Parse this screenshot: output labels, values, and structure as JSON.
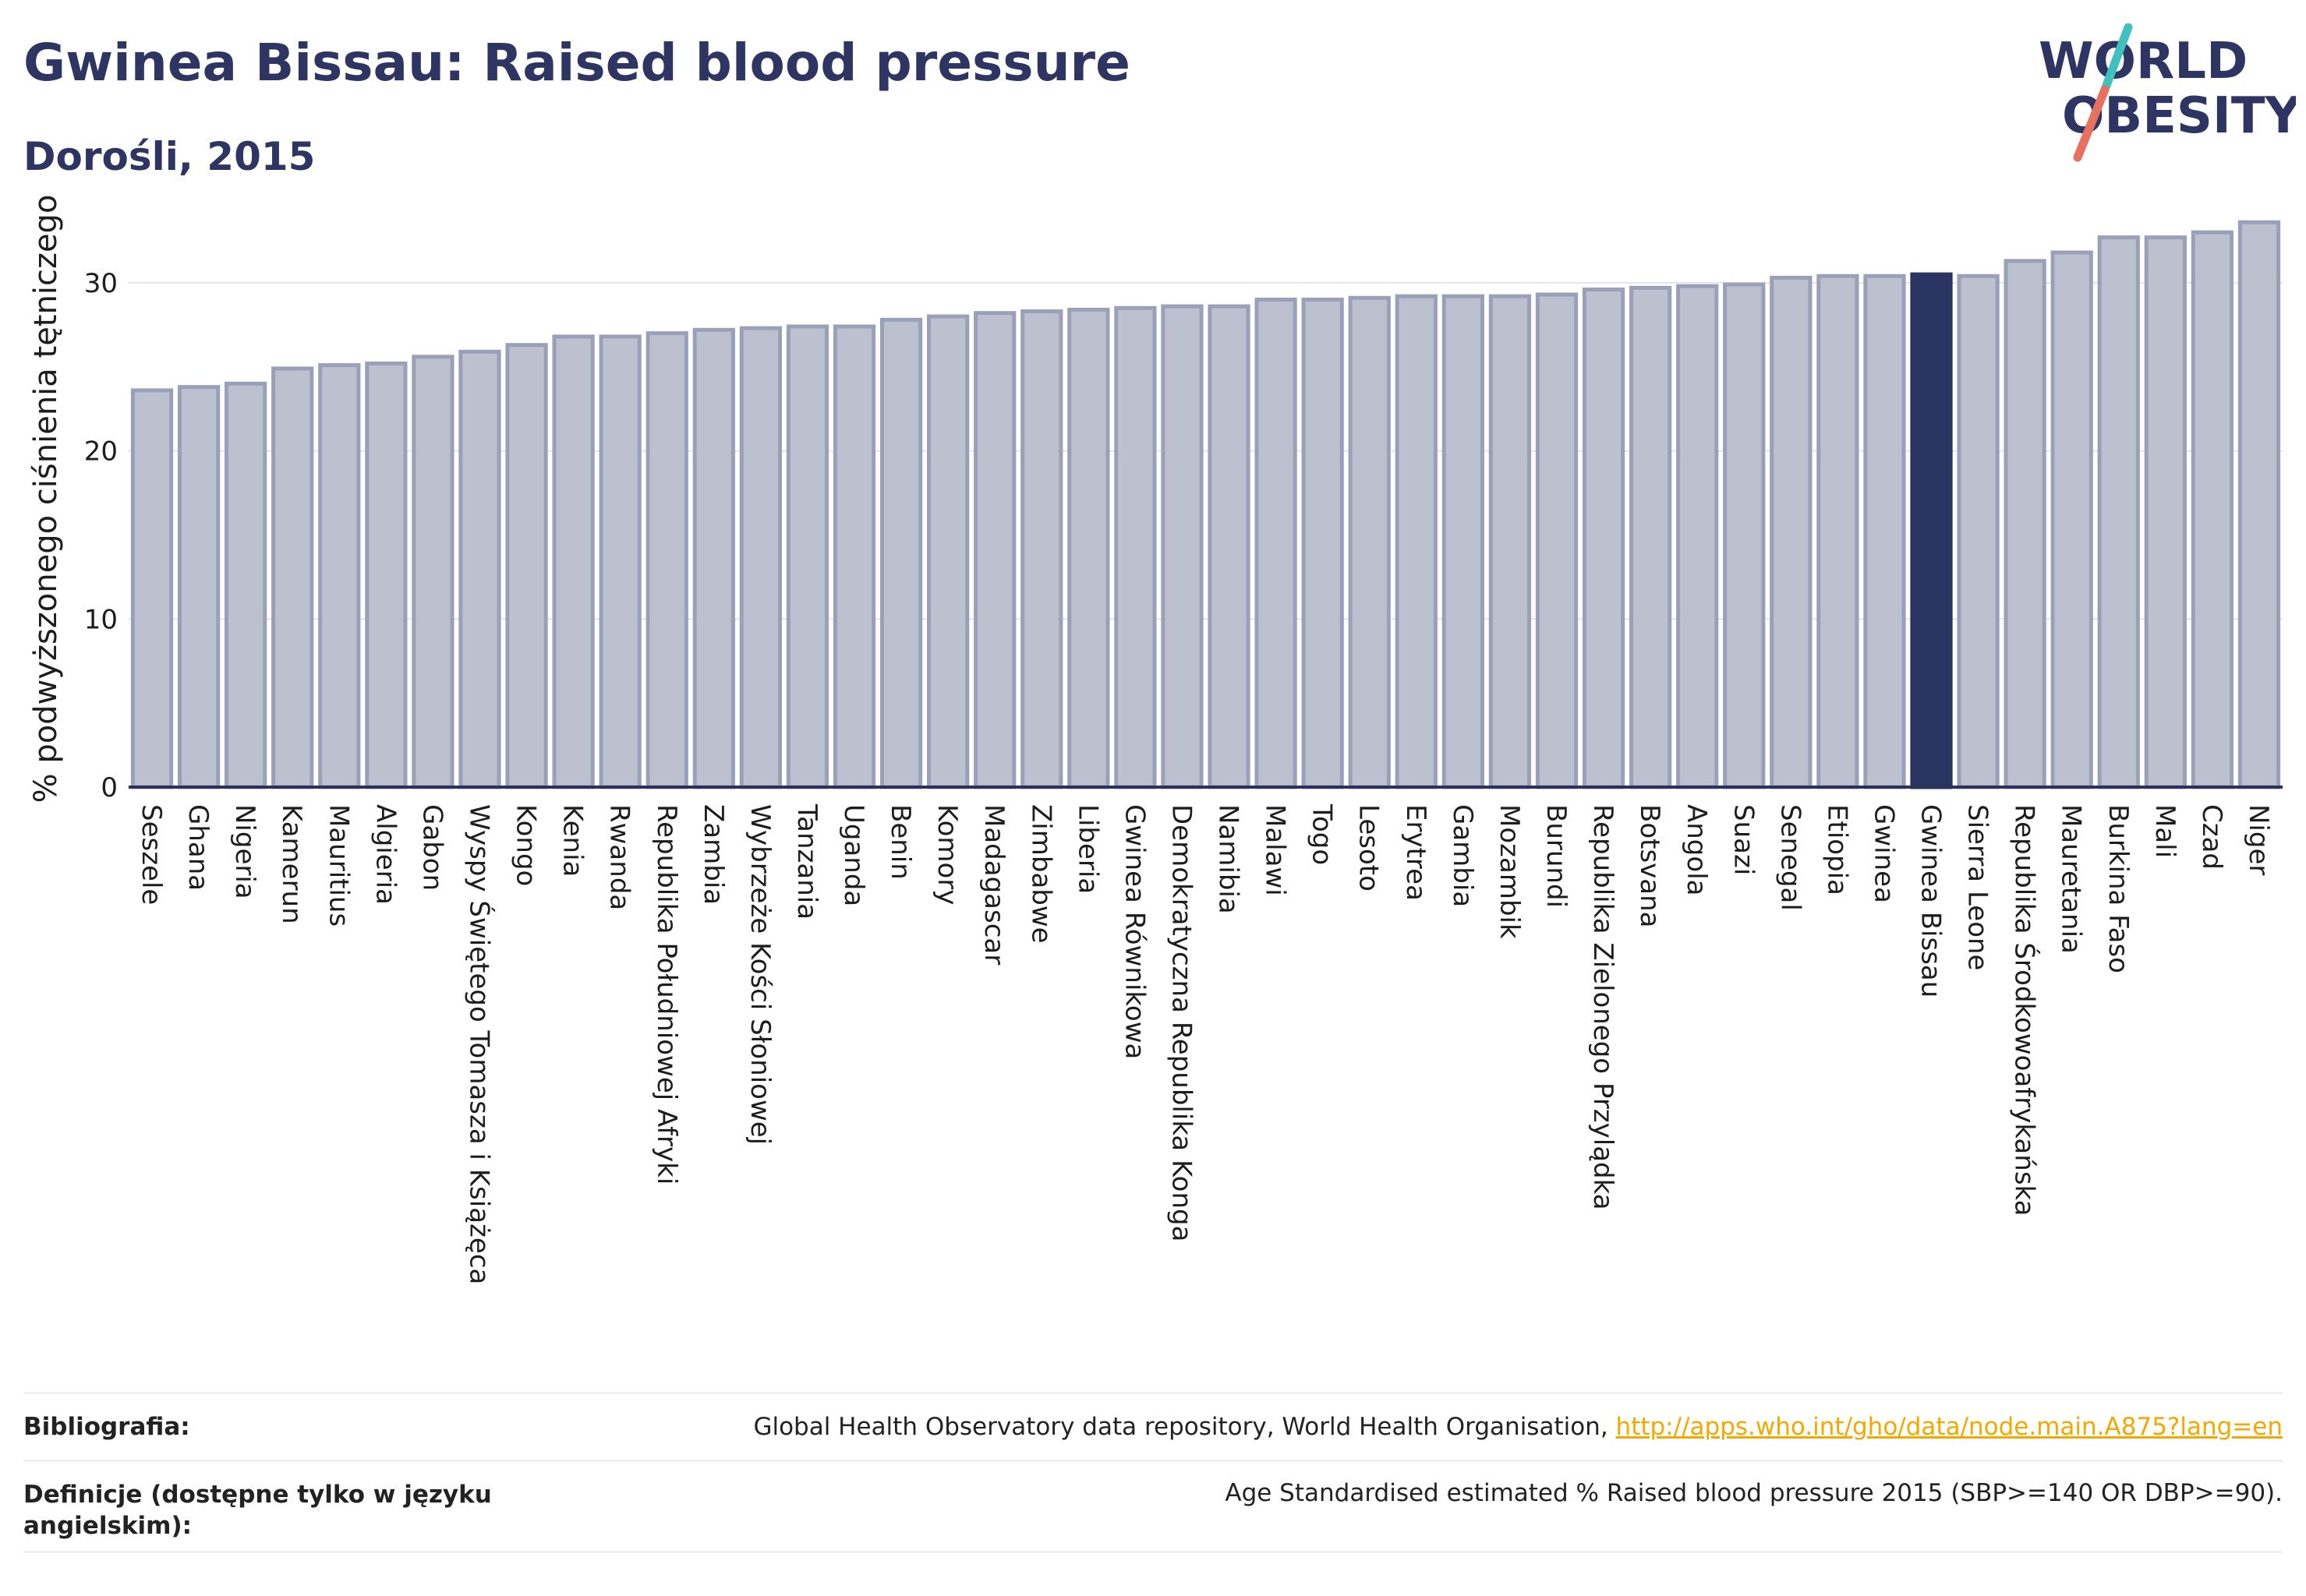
{
  "header": {
    "title": "Gwinea Bissau: Raised blood pressure",
    "subtitle": "Dorośli, 2015"
  },
  "logo": {
    "line1": "WORLD",
    "line2": "OBESITY",
    "colors": {
      "text": "#2e3563",
      "slash_teal": "#3fc1c0",
      "slash_coral": "#e8705f"
    }
  },
  "colors": {
    "bar_fill": "#bcc0cf",
    "bar_stroke": "#9aa0b8",
    "highlight_fill": "#2a3462",
    "grid": "#e3e5ee",
    "axis": "#2b335a"
  },
  "chart_data": {
    "type": "bar",
    "ylabel": "% podwyższonego ciśnienia tętniczego",
    "ylim": [
      0,
      35
    ],
    "yticks": [
      0,
      10,
      20,
      30
    ],
    "grid": true,
    "highlight": "Gwinea Bissau",
    "categories": [
      "Seszele",
      "Ghana",
      "Nigeria",
      "Kamerun",
      "Mauritius",
      "Algieria",
      "Gabon",
      "Wyspy Świętego Tomasza i Książęca",
      "Kongo",
      "Kenia",
      "Rwanda",
      "Republika Południowej Afryki",
      "Zambia",
      "Wybrzeże Kości Słoniowej",
      "Tanzania",
      "Uganda",
      "Benin",
      "Komory",
      "Madagascar",
      "Zimbabwe",
      "Liberia",
      "Gwinea Równikowa",
      "Demokratyczna Republika Konga",
      "Namibia",
      "Malawi",
      "Togo",
      "Lesoto",
      "Erytrea",
      "Gambia",
      "Mozambik",
      "Burundi",
      "Republika Zielonego Przylądka",
      "Botsvana",
      "Angola",
      "Suazi",
      "Senegal",
      "Etiopia",
      "Gwinea",
      "Gwinea Bissau",
      "Sierra Leone",
      "Republika Środkowoafrykańska",
      "Mauretania",
      "Burkina Faso",
      "Mali",
      "Czad",
      "Niger"
    ],
    "values": [
      23.6,
      23.8,
      24.0,
      24.9,
      25.1,
      25.2,
      25.6,
      25.9,
      26.3,
      26.8,
      26.8,
      27.0,
      27.2,
      27.3,
      27.4,
      27.4,
      27.8,
      28.0,
      28.2,
      28.3,
      28.4,
      28.5,
      28.6,
      28.6,
      29.0,
      29.0,
      29.1,
      29.2,
      29.2,
      29.2,
      29.3,
      29.6,
      29.7,
      29.8,
      29.9,
      30.3,
      30.4,
      30.4,
      30.5,
      30.4,
      31.3,
      31.8,
      32.7,
      32.7,
      33.0,
      33.6
    ]
  },
  "footer": {
    "bibliography_label": "Bibliografia:",
    "bibliography_text": "Global Health Observatory data repository, World Health Organisation, ",
    "bibliography_link": "http://apps.who.int/gho/data/node.main.A875?lang=en",
    "definitions_label": "Definicje (dostępne tylko w języku angielskim):",
    "definitions_text": "Age Standardised estimated % Raised blood pressure 2015 (SBP>=140 OR DBP>=90)."
  }
}
